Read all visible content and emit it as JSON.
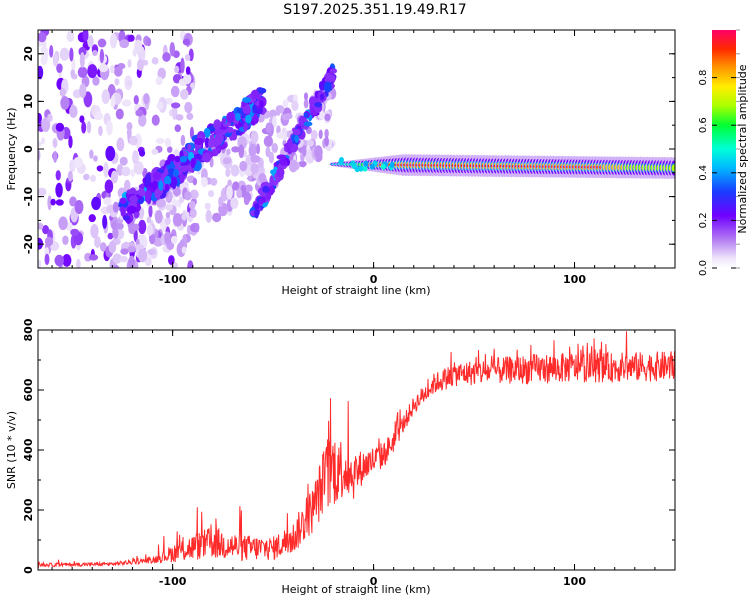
{
  "figure": {
    "title": "S197.2025.351.19.49.R17"
  },
  "chart_data": [
    {
      "type": "heatmap",
      "name": "spectrogram",
      "title": "",
      "xlabel": "Height of straight line (km)",
      "ylabel": "Frequency (Hz)",
      "xlim": [
        -167,
        150
      ],
      "ylim": [
        -25,
        25
      ],
      "x_ticks": [
        -100,
        0,
        100
      ],
      "y_ticks": [
        -20,
        -10,
        0,
        10,
        20
      ],
      "colorbar": {
        "label": "Normalized spectral amplitude",
        "range": [
          0,
          1
        ],
        "ticks": [
          0.0,
          0.2,
          0.4,
          0.6,
          0.8
        ],
        "tick_labels": [
          "0.0",
          "0.2",
          "0.4",
          "0.6",
          "0.8"
        ]
      },
      "features": {
        "steady_tone": {
          "x_from": -20,
          "x_to": 150,
          "freq_start": -3.2,
          "freq_end": -4.0,
          "peak_amplitude": 1.0
        },
        "rising_branch_1": {
          "x_from": -125,
          "x_to": -55,
          "freq_start": -13,
          "freq_end": 10
        },
        "rising_branch_2": {
          "x_from": -60,
          "x_to": -20,
          "freq_start": -14,
          "freq_end": 16
        },
        "noise_region": {
          "x_from": -167,
          "x_to": -110,
          "freq_range": [
            -25,
            25
          ]
        }
      }
    },
    {
      "type": "line",
      "name": "snr",
      "title": "",
      "xlabel": "Height of straight line (km)",
      "ylabel": "SNR (10 * v/v)",
      "xlim": [
        -167,
        150
      ],
      "ylim": [
        0,
        800
      ],
      "x_ticks": [
        -100,
        0,
        100
      ],
      "y_ticks": [
        0,
        200,
        400,
        600,
        800
      ],
      "color": "#ff2b2b",
      "envelope": {
        "x": [
          -167,
          -130,
          -110,
          -95,
          -80,
          -65,
          -50,
          -40,
          -30,
          -25,
          -20,
          -15,
          -10,
          -5,
          0,
          5,
          10,
          15,
          20,
          30,
          40,
          60,
          80,
          100,
          120,
          150
        ],
        "base": [
          15,
          18,
          30,
          55,
          75,
          60,
          60,
          90,
          180,
          260,
          300,
          310,
          290,
          330,
          350,
          370,
          420,
          480,
          540,
          610,
          640,
          650,
          655,
          660,
          660,
          665
        ],
        "noise": [
          12,
          12,
          20,
          80,
          110,
          90,
          80,
          110,
          160,
          220,
          260,
          200,
          160,
          110,
          100,
          90,
          80,
          60,
          60,
          70,
          80,
          90,
          100,
          100,
          100,
          100
        ]
      }
    }
  ]
}
